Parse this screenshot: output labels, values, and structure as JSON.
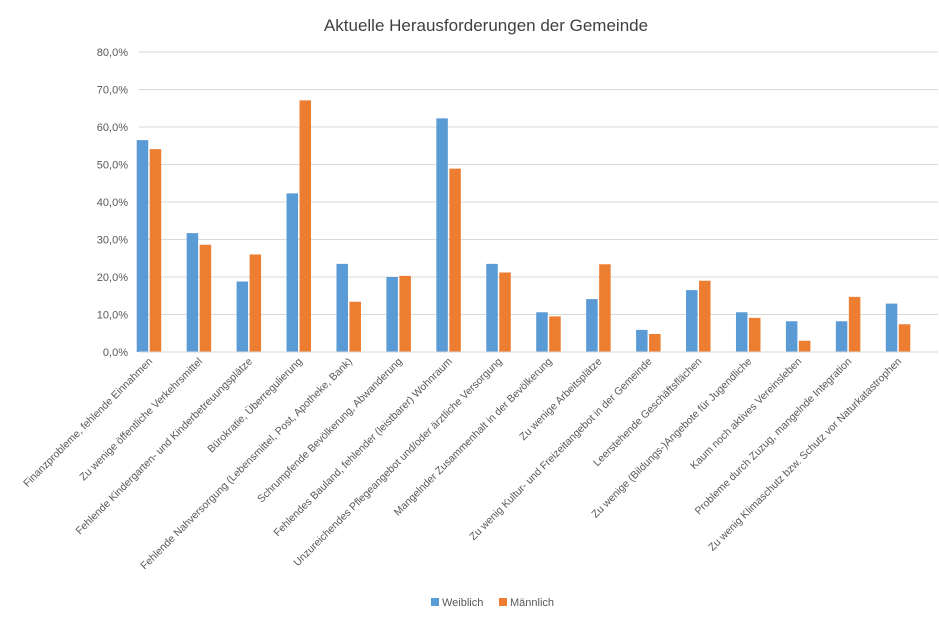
{
  "chart_data": {
    "type": "bar",
    "title": "Aktuelle Herausforderungen der Gemeinde",
    "xlabel": "",
    "ylabel": "",
    "ylim": [
      0,
      80
    ],
    "yticks": [
      "0,0%",
      "10,0%",
      "20,0%",
      "30,0%",
      "40,0%",
      "50,0%",
      "60,0%",
      "70,0%",
      "80,0%"
    ],
    "grid": true,
    "legend_position": "bottom",
    "categories": [
      "Finanzprobleme, fehlende Einnahmen",
      "Zu wenige öffentliche Verkehrsmittel",
      "Fehlende Kindergarten- und Kinderbetreuungsplätze",
      "Bürokratie, Überregulierung",
      "Fehlende Nahversorgung (Lebensmittel, Post, Apotheke, Bank)",
      "Schrumpfende Bevölkerung, Abwanderung",
      "Fehlendes Bauland, fehlender (leistbarer) Wohnraum",
      "Unzureichendes Pflegeangebot und/oder ärztliche Versorgung",
      "Mangelnder Zusammenhalt in der Bevölkerung",
      "Zu wenige Arbeitsplätze",
      "Zu wenig Kultur- und Freizeitangebot in der Gemeinde",
      "Leerstehende Geschäftsflächen",
      "Zu wenige (Bildungs-)Angebote für Jugendliche",
      "Kaum noch aktives Vereinsleben",
      "Probleme durch Zuzug, mangelnde Integration",
      "Zu wenig Klimaschutz bzw. Schutz vor Naturkatastrophen"
    ],
    "series": [
      {
        "name": "Weiblich",
        "color": "#5B9BD5",
        "values": [
          56.5,
          31.7,
          18.8,
          42.3,
          23.5,
          20.0,
          62.3,
          23.5,
          10.6,
          14.1,
          5.9,
          16.5,
          10.6,
          8.2,
          8.2,
          12.9
        ]
      },
      {
        "name": "Männlich",
        "color": "#ED7D31",
        "values": [
          54.1,
          28.6,
          26.0,
          67.1,
          13.4,
          20.3,
          48.9,
          21.2,
          9.5,
          23.4,
          4.8,
          19.0,
          9.1,
          3.0,
          14.7,
          7.4
        ]
      }
    ]
  },
  "colors": {
    "axis_text": "#595959",
    "gridline": "#d9d9d9"
  }
}
